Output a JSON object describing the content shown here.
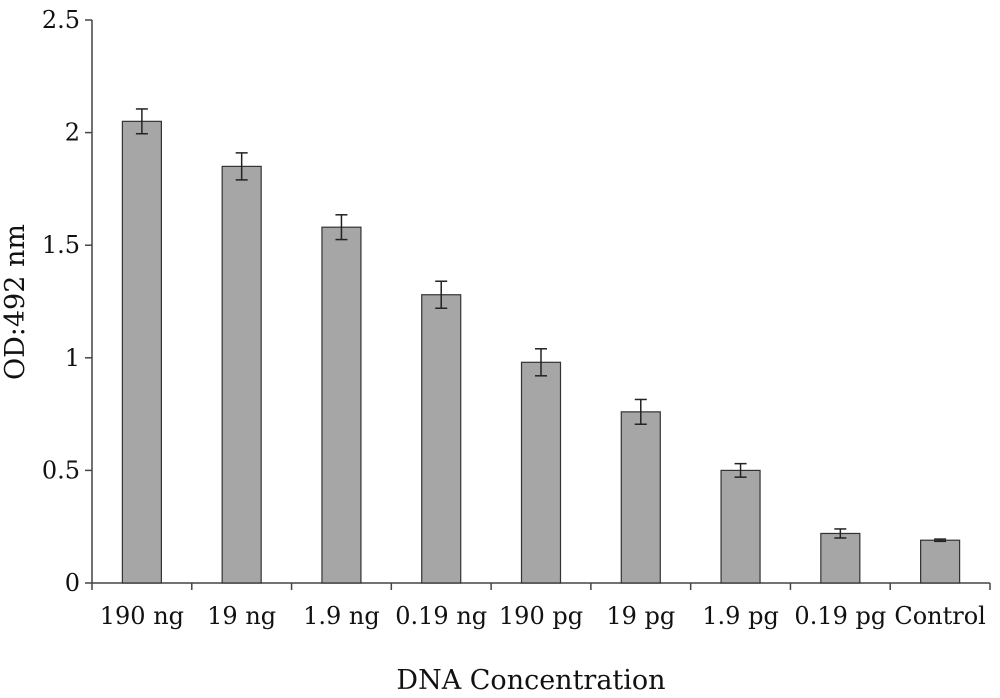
{
  "chart_data": {
    "type": "bar",
    "xlabel": "DNA Concentration",
    "ylabel": "OD:492 nm",
    "ylim": [
      0,
      2.5
    ],
    "yticks": [
      0,
      0.5,
      1,
      1.5,
      2,
      2.5
    ],
    "ytick_labels": [
      "0",
      "0.5",
      "1",
      "1.5",
      "2",
      "2.5"
    ],
    "categories": [
      "190 ng",
      "19 ng",
      "1.9 ng",
      "0.19 ng",
      "190 pg",
      "19 pg",
      "1.9 pg",
      "0.19 pg",
      "Control"
    ],
    "values": [
      2.05,
      1.85,
      1.58,
      1.28,
      0.98,
      0.76,
      0.5,
      0.22,
      0.19
    ],
    "errors": [
      0.055,
      0.06,
      0.055,
      0.06,
      0.06,
      0.055,
      0.03,
      0.02,
      0.005
    ],
    "bar_color": "#a6a6a6",
    "bar_edge_color": "#333333",
    "grid": false,
    "legend": "none"
  }
}
